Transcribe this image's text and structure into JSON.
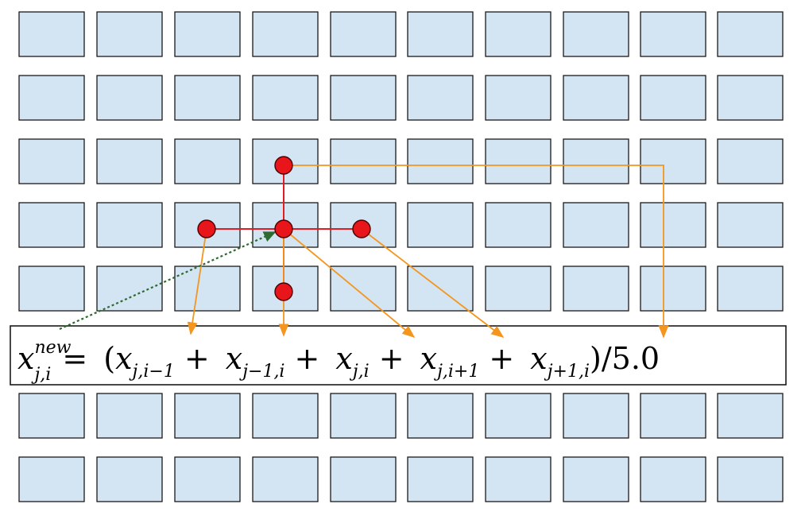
{
  "grid": {
    "rows": 8,
    "cols": 10,
    "cell_fill": "#d3e4f3",
    "cell_stroke": "#1a1a1a",
    "formula_band_rows": [
      5
    ]
  },
  "stencil": {
    "center": {
      "row": 3,
      "col": 3
    },
    "neighbors": [
      {
        "name": "west",
        "row": 3,
        "col": 2
      },
      {
        "name": "north",
        "row": 2,
        "col": 3
      },
      {
        "name": "east",
        "row": 3,
        "col": 4
      },
      {
        "name": "south",
        "row": 4,
        "col": 3
      }
    ],
    "node_color": "#e8151b",
    "node_stroke": "#4a0000",
    "connector_color": "#e31c23",
    "arrow_color": "#f4961d",
    "feedback_arrow_color": "#2e6b30"
  },
  "formula": {
    "lhs_base": "x",
    "lhs_sup": "new",
    "lhs_sub": "j,i",
    "equals": "=",
    "open": "(",
    "terms": [
      {
        "base": "x",
        "sub": "j,i−1"
      },
      {
        "base": "x",
        "sub": "j−1,i"
      },
      {
        "base": "x",
        "sub": "j,i"
      },
      {
        "base": "x",
        "sub": "j,i+1"
      },
      {
        "base": "x",
        "sub": "j+1,i"
      }
    ],
    "plus": "+",
    "close": ")",
    "divisor": "/5.0"
  }
}
